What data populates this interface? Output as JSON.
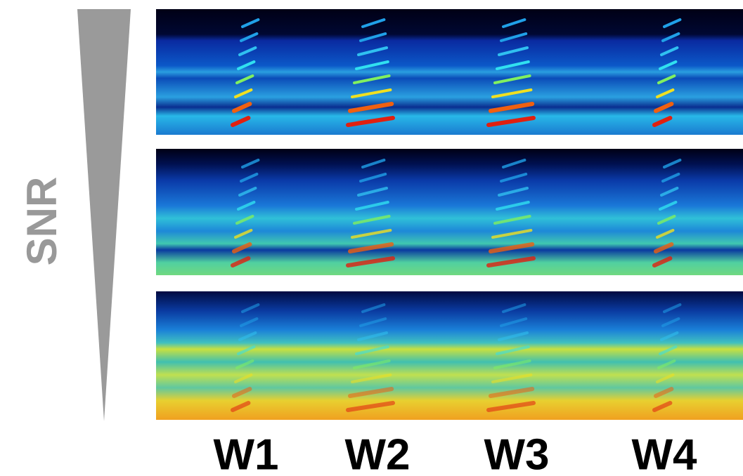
{
  "axis_label": "SNR",
  "columns": [
    "W1",
    "W2",
    "W3",
    "W4"
  ]
}
